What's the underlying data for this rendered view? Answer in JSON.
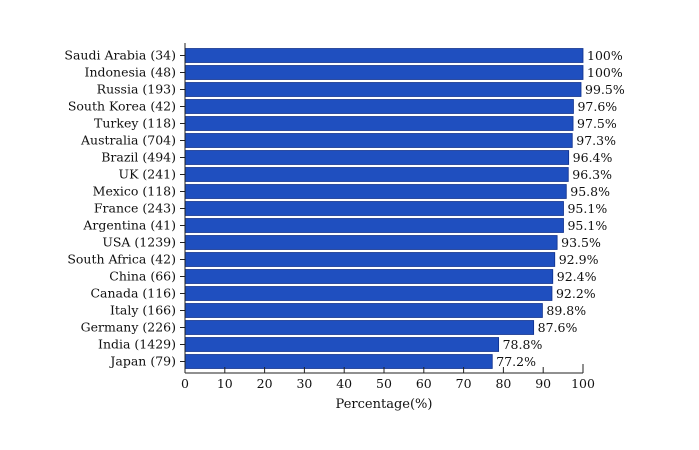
{
  "chart_data": {
    "type": "bar",
    "orientation": "horizontal",
    "categories": [
      "Saudi Arabia (34)",
      "Indonesia (48)",
      "Russia (193)",
      "South Korea (42)",
      "Turkey (118)",
      "Australia (704)",
      "Brazil (494)",
      "UK (241)",
      "Mexico (118)",
      "France (243)",
      "Argentina (41)",
      "USA (1239)",
      "South Africa (42)",
      "China (66)",
      "Canada (116)",
      "Italy (166)",
      "Germany (226)",
      "India (1429)",
      "Japan (79)"
    ],
    "values": [
      100,
      100,
      99.5,
      97.6,
      97.5,
      97.3,
      96.4,
      96.3,
      95.8,
      95.1,
      95.1,
      93.5,
      92.9,
      92.4,
      92.2,
      89.8,
      87.6,
      78.8,
      77.2
    ],
    "value_labels": [
      "100%",
      "100%",
      "99.5%",
      "97.6%",
      "97.5%",
      "97.3%",
      "96.4%",
      "96.3%",
      "95.8%",
      "95.1%",
      "95.1%",
      "93.5%",
      "92.9%",
      "92.4%",
      "92.2%",
      "89.8%",
      "87.6%",
      "78.8%",
      "77.2%"
    ],
    "xlabel": "Percentage(%)",
    "ylabel": "",
    "xlim": [
      0,
      100
    ],
    "xticks": [
      0,
      10,
      20,
      30,
      40,
      50,
      60,
      70,
      80,
      90,
      100
    ],
    "grid": false,
    "bar_color": "#1f4fbf",
    "bar_edge_color": "#0d2f8c"
  }
}
